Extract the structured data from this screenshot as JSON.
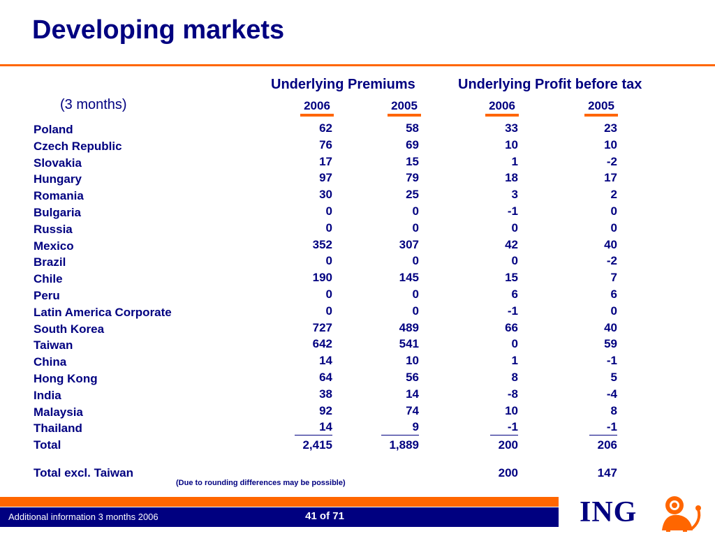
{
  "title": "Developing markets",
  "headers": {
    "premiums": "Underlying Premiums",
    "profit": "Underlying Profit before tax",
    "period": "(3 months)",
    "years": [
      "2006",
      "2005",
      "2006",
      "2005"
    ]
  },
  "rows": [
    {
      "label": "Poland",
      "values": [
        "62",
        "58",
        "33",
        "23"
      ]
    },
    {
      "label": "Czech Republic",
      "values": [
        "76",
        "69",
        "10",
        "10"
      ]
    },
    {
      "label": "Slovakia",
      "values": [
        "17",
        "15",
        "1",
        "-2"
      ]
    },
    {
      "label": "Hungary",
      "values": [
        "97",
        "79",
        "18",
        "17"
      ]
    },
    {
      "label": "Romania",
      "values": [
        "30",
        "25",
        "3",
        "2"
      ]
    },
    {
      "label": "Bulgaria",
      "values": [
        "0",
        "0",
        "-1",
        "0"
      ]
    },
    {
      "label": "Russia",
      "values": [
        "0",
        "0",
        "0",
        "0"
      ]
    },
    {
      "label": "Mexico",
      "values": [
        "352",
        "307",
        "42",
        "40"
      ]
    },
    {
      "label": "Brazil",
      "values": [
        "0",
        "0",
        "0",
        "-2"
      ]
    },
    {
      "label": "Chile",
      "values": [
        "190",
        "145",
        "15",
        "7"
      ]
    },
    {
      "label": "Peru",
      "values": [
        "0",
        "0",
        "6",
        "6"
      ]
    },
    {
      "label": "Latin America Corporate",
      "values": [
        "0",
        "0",
        "-1",
        "0"
      ]
    },
    {
      "label": "South Korea",
      "values": [
        "727",
        "489",
        "66",
        "40"
      ]
    },
    {
      "label": "Taiwan",
      "values": [
        "642",
        "541",
        "0",
        "59"
      ]
    },
    {
      "label": "China",
      "values": [
        "14",
        "10",
        "1",
        "-1"
      ]
    },
    {
      "label": "Hong Kong",
      "values": [
        "64",
        "56",
        "8",
        "5"
      ]
    },
    {
      "label": "India",
      "values": [
        "38",
        "14",
        "-8",
        "-4"
      ]
    },
    {
      "label": "Malaysia",
      "values": [
        "92",
        "74",
        "10",
        "8"
      ]
    },
    {
      "label": "Thailand",
      "values": [
        "14",
        "9",
        "-1",
        "-1"
      ]
    }
  ],
  "total": {
    "label": "Total",
    "values": [
      "2,415",
      "1,889",
      "200",
      "206"
    ]
  },
  "total_excl": {
    "label": "Total excl. Taiwan",
    "values": [
      "",
      "",
      "200",
      "147"
    ]
  },
  "note": "(Due to rounding differences may be possible)",
  "footer": {
    "text": "Additional information 3 months 2006",
    "page": "41 of 71",
    "logo": "ING"
  },
  "colors": {
    "accent": "#ff6600",
    "brand": "#000080"
  }
}
